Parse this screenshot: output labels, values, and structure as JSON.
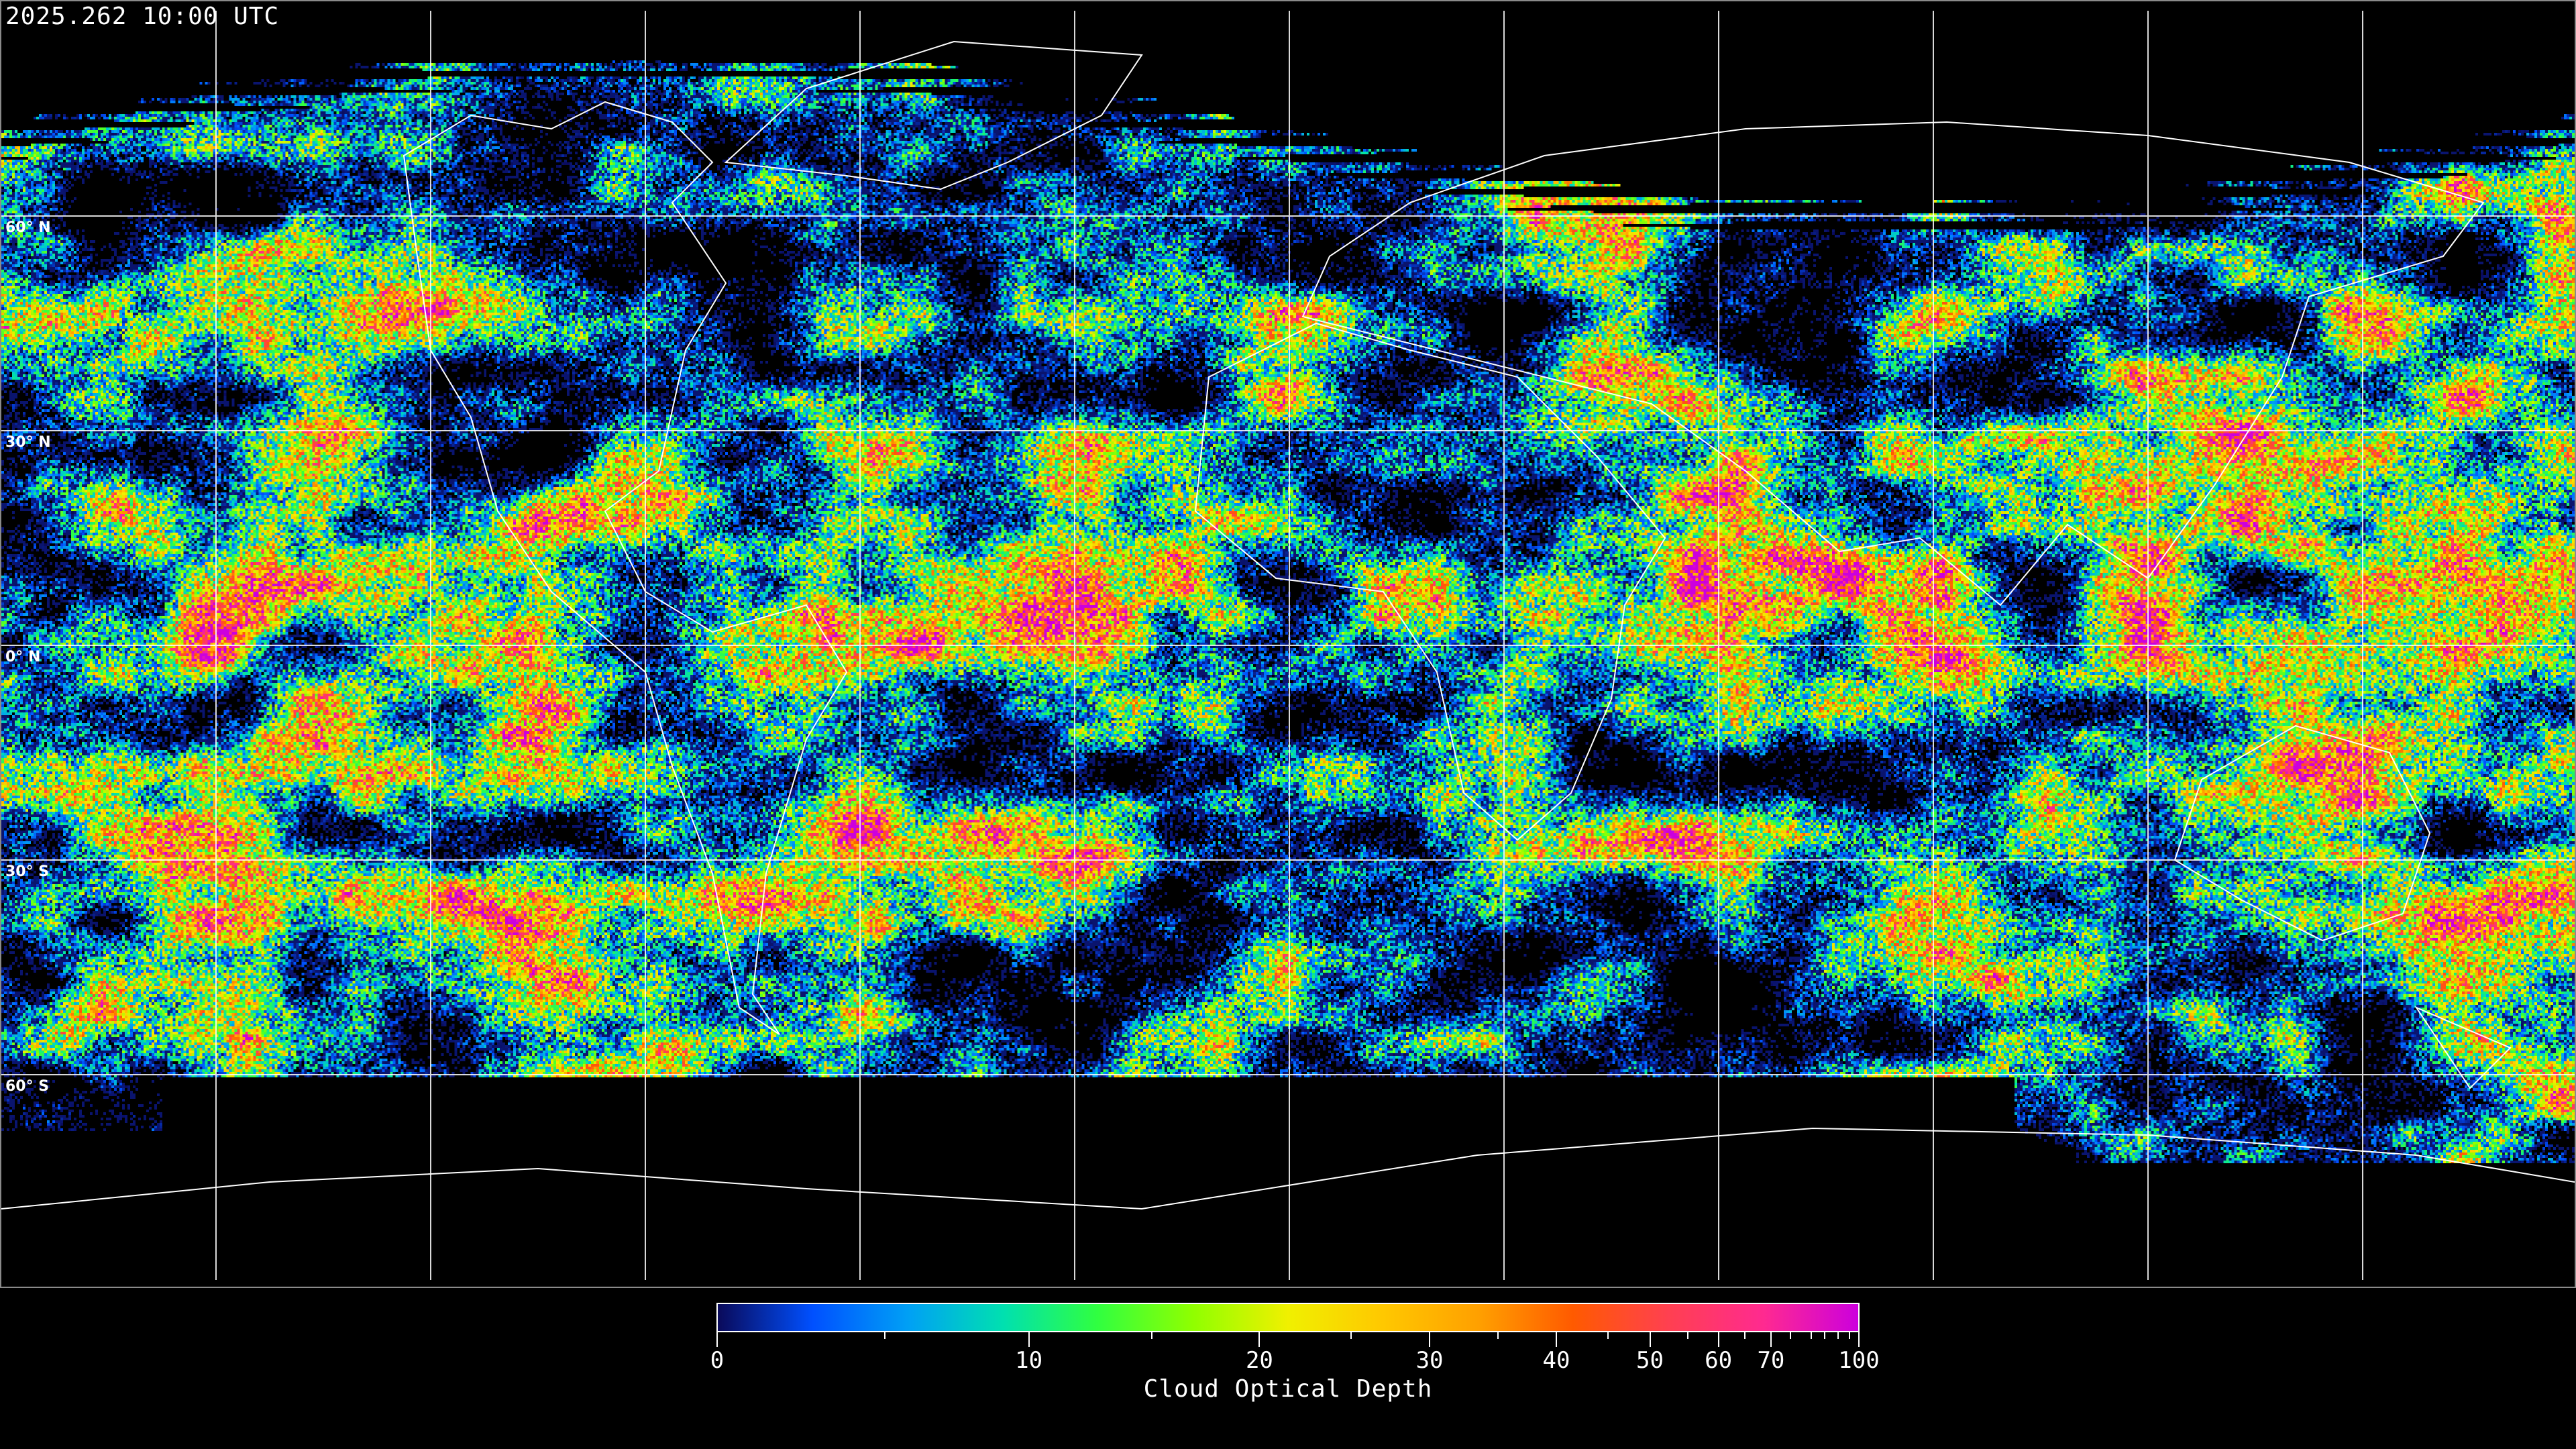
{
  "header": {
    "timestamp": "2025.262 10:00 UTC"
  },
  "map": {
    "projection": "equirectangular",
    "gridlines": {
      "longitude_step_deg": 30,
      "latitude_step_deg": 30,
      "color": "#ffffff"
    },
    "latitude_labels": [
      "60° N",
      "30° N",
      "0° N",
      "30° S",
      "60° S"
    ],
    "coastline_color": "#ffffff",
    "no_data_color": "#000000"
  },
  "colorbar": {
    "title": "Cloud Optical Depth",
    "range": [
      0,
      100
    ],
    "major_ticks": [
      "0",
      "10",
      "20",
      "30",
      "40",
      "50",
      "60",
      "70",
      "100"
    ],
    "minor_ticks": [
      5,
      15,
      25,
      35,
      45,
      55,
      65,
      75,
      80,
      85,
      90,
      95
    ],
    "colors": [
      "#0a0a5a",
      "#0050ff",
      "#00a0f5",
      "#00e0b0",
      "#30ff40",
      "#90ff00",
      "#f0f000",
      "#ffc800",
      "#ffa000",
      "#ff5a00",
      "#ff4050",
      "#ff2a90",
      "#cc00dd"
    ]
  }
}
